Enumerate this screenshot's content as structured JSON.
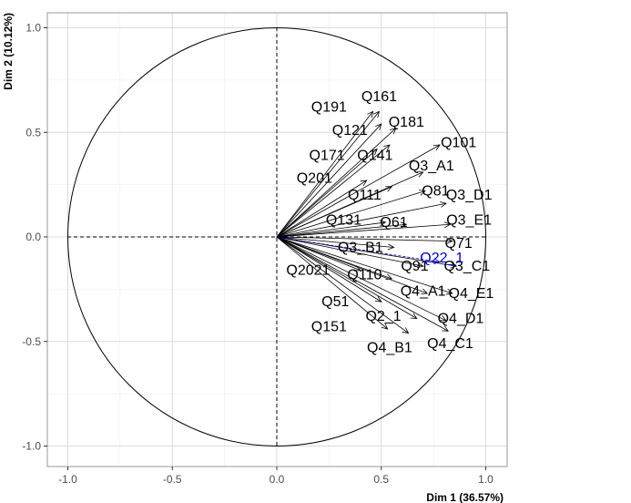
{
  "chart_data": {
    "type": "scatter",
    "subtype": "pca-variables-correlation-circle",
    "xlabel": "Dim 1 (36.57%)",
    "ylabel": "Dim 2 (10.12%)",
    "xlim": [
      -1.0,
      1.0
    ],
    "ylim": [
      -1.0,
      1.0
    ],
    "x_ticks": [
      "-1.0",
      "-0.5",
      "0.0",
      "0.5",
      "1.0"
    ],
    "y_ticks": [
      "-1.0",
      "-0.5",
      "0.0",
      "0.5",
      "1.0"
    ],
    "grid": true,
    "unit_circle": true,
    "colors": {
      "active": "#000000",
      "supplementary": "#0000cd",
      "circle": "#000000",
      "grid": "#ebebeb",
      "panel_border": "#999999"
    },
    "variables": [
      {
        "name": "Q191",
        "x": 0.46,
        "y": 0.6,
        "lx": 0.25,
        "ly": 0.62
      },
      {
        "name": "Q161",
        "x": 0.49,
        "y": 0.6,
        "lx": 0.49,
        "ly": 0.67
      },
      {
        "name": "Q121",
        "x": 0.5,
        "y": 0.54,
        "lx": 0.35,
        "ly": 0.51
      },
      {
        "name": "Q181",
        "x": 0.57,
        "y": 0.52,
        "lx": 0.62,
        "ly": 0.55
      },
      {
        "name": "Q171",
        "x": 0.48,
        "y": 0.42,
        "lx": 0.24,
        "ly": 0.39
      },
      {
        "name": "Q141",
        "x": 0.54,
        "y": 0.44,
        "lx": 0.47,
        "ly": 0.39
      },
      {
        "name": "Q101",
        "x": 0.78,
        "y": 0.44,
        "lx": 0.87,
        "ly": 0.45
      },
      {
        "name": "Q3_A1",
        "x": 0.7,
        "y": 0.31,
        "lx": 0.74,
        "ly": 0.34
      },
      {
        "name": "Q201",
        "x": 0.43,
        "y": 0.27,
        "lx": 0.18,
        "ly": 0.28
      },
      {
        "name": "Q111",
        "x": 0.55,
        "y": 0.24,
        "lx": 0.42,
        "ly": 0.2
      },
      {
        "name": "Q81",
        "x": 0.71,
        "y": 0.22,
        "lx": 0.76,
        "ly": 0.22
      },
      {
        "name": "Q3_D1",
        "x": 0.81,
        "y": 0.16,
        "lx": 0.92,
        "ly": 0.2
      },
      {
        "name": "Q131",
        "x": 0.52,
        "y": 0.07,
        "lx": 0.32,
        "ly": 0.08
      },
      {
        "name": "Q61",
        "x": 0.62,
        "y": 0.06,
        "lx": 0.56,
        "ly": 0.07
      },
      {
        "name": "Q3_E1",
        "x": 0.83,
        "y": 0.06,
        "lx": 0.92,
        "ly": 0.08
      },
      {
        "name": "Q71",
        "x": 0.84,
        "y": -0.02,
        "lx": 0.87,
        "ly": -0.03
      },
      {
        "name": "Q3_B1",
        "x": 0.56,
        "y": -0.05,
        "lx": 0.4,
        "ly": -0.05
      },
      {
        "name": "Q91",
        "x": 0.7,
        "y": -0.14,
        "lx": 0.66,
        "ly": -0.14
      },
      {
        "name": "Q3_C1",
        "x": 0.86,
        "y": -0.14,
        "lx": 0.91,
        "ly": -0.14
      },
      {
        "name": "Q2021",
        "x": 0.4,
        "y": -0.16,
        "lx": 0.15,
        "ly": -0.16
      },
      {
        "name": "Q110",
        "x": 0.55,
        "y": -0.2,
        "lx": 0.42,
        "ly": -0.18
      },
      {
        "name": "Q4_A1",
        "x": 0.72,
        "y": -0.27,
        "lx": 0.7,
        "ly": -0.26
      },
      {
        "name": "Q4_E1",
        "x": 0.84,
        "y": -0.27,
        "lx": 0.93,
        "ly": -0.27
      },
      {
        "name": "Q51",
        "x": 0.5,
        "y": -0.31,
        "lx": 0.28,
        "ly": -0.31
      },
      {
        "name": "Q2_1",
        "x": 0.67,
        "y": -0.39,
        "lx": 0.51,
        "ly": -0.38
      },
      {
        "name": "Q4_D1",
        "x": 0.81,
        "y": -0.4,
        "lx": 0.88,
        "ly": -0.39
      },
      {
        "name": "Q151",
        "x": 0.53,
        "y": -0.44,
        "lx": 0.25,
        "ly": -0.43
      },
      {
        "name": "Q4_B1",
        "x": 0.63,
        "y": -0.46,
        "lx": 0.54,
        "ly": -0.53
      },
      {
        "name": "Q4_C1",
        "x": 0.82,
        "y": -0.45,
        "lx": 0.83,
        "ly": -0.51
      }
    ],
    "supplementary": [
      {
        "name": "Q22_1",
        "x": 0.78,
        "y": -0.12,
        "lx": 0.79,
        "ly": -0.1
      }
    ]
  }
}
